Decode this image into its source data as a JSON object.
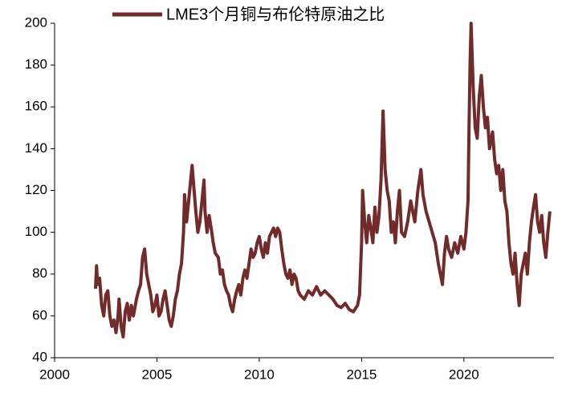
{
  "chart_data": {
    "type": "line",
    "x": [
      2002.0,
      2002.05,
      2002.1,
      2002.2,
      2002.3,
      2002.4,
      2002.5,
      2002.6,
      2002.7,
      2002.8,
      2002.9,
      2003.0,
      2003.1,
      2003.15,
      2003.25,
      2003.35,
      2003.45,
      2003.55,
      2003.65,
      2003.75,
      2003.85,
      2004.0,
      2004.1,
      2004.2,
      2004.3,
      2004.4,
      2004.5,
      2004.6,
      2004.7,
      2004.8,
      2004.9,
      2005.0,
      2005.1,
      2005.2,
      2005.3,
      2005.4,
      2005.5,
      2005.6,
      2005.7,
      2005.8,
      2005.9,
      2006.0,
      2006.1,
      2006.2,
      2006.3,
      2006.35,
      2006.45,
      2006.55,
      2006.65,
      2006.72,
      2006.8,
      2006.9,
      2007.0,
      2007.1,
      2007.2,
      2007.3,
      2007.35,
      2007.45,
      2007.55,
      2007.65,
      2007.75,
      2007.85,
      2008.0,
      2008.1,
      2008.2,
      2008.3,
      2008.4,
      2008.5,
      2008.6,
      2008.7,
      2008.8,
      2008.9,
      2009.0,
      2009.1,
      2009.2,
      2009.3,
      2009.4,
      2009.5,
      2009.6,
      2009.7,
      2009.8,
      2009.9,
      2010.0,
      2010.1,
      2010.2,
      2010.3,
      2010.4,
      2010.5,
      2010.6,
      2010.7,
      2010.8,
      2010.9,
      2011.0,
      2011.1,
      2011.2,
      2011.3,
      2011.4,
      2011.5,
      2011.6,
      2011.7,
      2011.8,
      2011.9,
      2012.0,
      2012.2,
      2012.4,
      2012.6,
      2012.8,
      2013.0,
      2013.2,
      2013.4,
      2013.6,
      2013.8,
      2014.0,
      2014.2,
      2014.4,
      2014.6,
      2014.8,
      2014.9,
      2015.0,
      2015.05,
      2015.15,
      2015.25,
      2015.35,
      2015.45,
      2015.55,
      2015.65,
      2015.75,
      2015.85,
      2015.95,
      2016.05,
      2016.15,
      2016.25,
      2016.35,
      2016.45,
      2016.55,
      2016.65,
      2016.75,
      2016.85,
      2016.95,
      2017.1,
      2017.25,
      2017.4,
      2017.5,
      2017.6,
      2017.75,
      2017.9,
      2018.0,
      2018.15,
      2018.3,
      2018.45,
      2018.6,
      2018.75,
      2018.85,
      2018.95,
      2019.05,
      2019.15,
      2019.25,
      2019.4,
      2019.55,
      2019.7,
      2019.85,
      2020.0,
      2020.1,
      2020.2,
      2020.25,
      2020.3,
      2020.35,
      2020.45,
      2020.55,
      2020.65,
      2020.75,
      2020.85,
      2020.95,
      2021.05,
      2021.15,
      2021.25,
      2021.4,
      2021.5,
      2021.6,
      2021.7,
      2021.8,
      2021.9,
      2022.0,
      2022.1,
      2022.2,
      2022.3,
      2022.4,
      2022.5,
      2022.6,
      2022.7,
      2022.8,
      2022.9,
      2023.0,
      2023.1,
      2023.2,
      2023.3,
      2023.4,
      2023.5,
      2023.6,
      2023.7,
      2023.8,
      2023.9,
      2024.0,
      2024.1,
      2024.2
    ],
    "series": [
      {
        "name": "LME3个月铜与布伦特原油之比",
        "color": "#722b2b",
        "values": [
          73,
          84,
          75,
          78,
          65,
          60,
          70,
          72,
          60,
          55,
          58,
          52,
          60,
          68,
          55,
          50,
          62,
          66,
          58,
          65,
          60,
          68,
          72,
          75,
          88,
          92,
          80,
          75,
          70,
          62,
          65,
          70,
          60,
          62,
          68,
          72,
          65,
          58,
          55,
          60,
          68,
          72,
          80,
          85,
          100,
          118,
          105,
          115,
          125,
          132,
          122,
          110,
          100,
          105,
          115,
          125,
          110,
          100,
          108,
          102,
          95,
          90,
          88,
          80,
          82,
          75,
          72,
          70,
          65,
          62,
          68,
          72,
          75,
          70,
          78,
          82,
          78,
          85,
          92,
          88,
          90,
          95,
          98,
          92,
          88,
          95,
          90,
          98,
          100,
          102,
          98,
          102,
          100,
          92,
          85,
          80,
          78,
          82,
          75,
          80,
          78,
          72,
          70,
          68,
          72,
          70,
          74,
          70,
          72,
          70,
          68,
          65,
          64,
          66,
          63,
          62,
          65,
          70,
          95,
          120,
          105,
          95,
          108,
          102,
          95,
          112,
          100,
          108,
          125,
          158,
          130,
          120,
          115,
          100,
          105,
          95,
          110,
          120,
          100,
          98,
          105,
          115,
          110,
          105,
          120,
          130,
          118,
          110,
          105,
          100,
          95,
          85,
          80,
          75,
          90,
          98,
          92,
          88,
          95,
          90,
          98,
          92,
          100,
          115,
          150,
          180,
          200,
          170,
          150,
          145,
          165,
          175,
          160,
          150,
          155,
          140,
          148,
          135,
          128,
          132,
          120,
          130,
          115,
          110,
          95,
          85,
          80,
          90,
          75,
          65,
          80,
          85,
          90,
          80,
          95,
          105,
          112,
          118,
          105,
          100,
          108,
          95,
          88,
          100,
          110
        ]
      }
    ],
    "xlim": [
      2000,
      2024.4
    ],
    "xticks": [
      2000,
      2005,
      2010,
      2015,
      2020
    ],
    "ylim": [
      40,
      200
    ],
    "yticks": [
      40,
      60,
      80,
      100,
      120,
      140,
      160,
      180,
      200
    ]
  }
}
